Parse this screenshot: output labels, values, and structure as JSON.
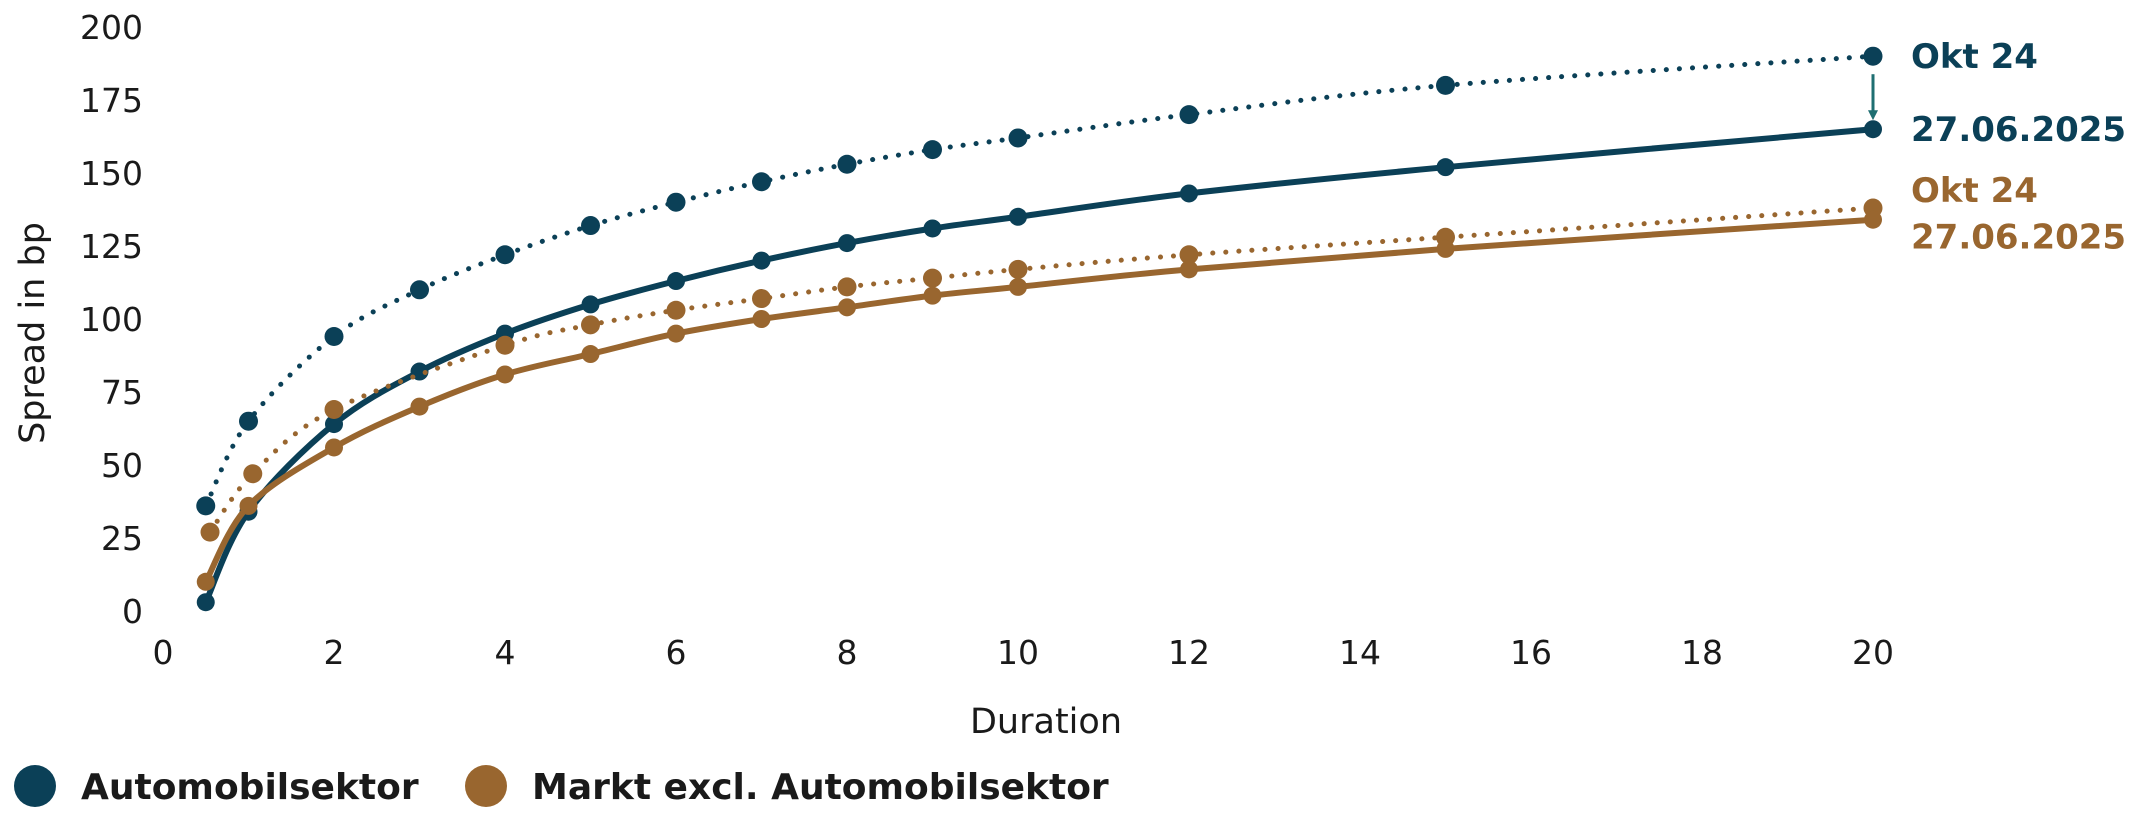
{
  "chart_data": {
    "type": "line",
    "xlabel": "Duration",
    "ylabel": "Spread in bp",
    "xlim": [
      0,
      20
    ],
    "ylim": [
      0,
      200
    ],
    "x_ticks": [
      "0",
      "2",
      "4",
      "6",
      "8",
      "10",
      "12",
      "14",
      "16",
      "18",
      "20"
    ],
    "y_ticks": [
      "0",
      "25",
      "50",
      "75",
      "100",
      "125",
      "150",
      "175",
      "200"
    ],
    "grid": false,
    "legend_position": "bottom-left",
    "colors": {
      "auto": "#0b4057",
      "market": "#99662f",
      "arrow": "#1f6f72"
    },
    "legend": [
      {
        "name": "Automobilsektor",
        "color": "#0b4057"
      },
      {
        "name": "Markt excl. Automobilsektor",
        "color": "#99662f"
      }
    ],
    "series": [
      {
        "group": "Automobilsektor",
        "end_label": "Okt 24",
        "style": "dotted",
        "color": "#0b4057",
        "x": [
          0.5,
          1,
          2,
          3,
          4,
          5,
          6,
          7,
          8,
          9,
          10,
          12,
          15,
          20
        ],
        "y": [
          36,
          65,
          94,
          110,
          122,
          132,
          140,
          147,
          153,
          158,
          162,
          170,
          180,
          190
        ]
      },
      {
        "group": "Automobilsektor",
        "end_label": "27.06.2025",
        "style": "solid",
        "color": "#0b4057",
        "x": [
          0.5,
          1,
          2,
          3,
          4,
          5,
          6,
          7,
          8,
          9,
          10,
          12,
          15,
          20
        ],
        "y": [
          3,
          34,
          64,
          82,
          95,
          105,
          113,
          120,
          126,
          131,
          135,
          143,
          152,
          165
        ]
      },
      {
        "group": "Markt excl. Automobilsektor",
        "end_label": "Okt 24",
        "style": "dotted",
        "color": "#99662f",
        "x": [
          0.55,
          1.05,
          2,
          4,
          5,
          6,
          7,
          8,
          9,
          10,
          12,
          15,
          20
        ],
        "y": [
          27,
          47,
          69,
          91,
          98,
          103,
          107,
          111,
          114,
          117,
          122,
          128,
          138
        ]
      },
      {
        "group": "Markt excl. Automobilsektor",
        "end_label": "27.06.2025",
        "style": "solid",
        "color": "#99662f",
        "x": [
          0.5,
          1,
          2,
          3,
          4,
          5,
          6,
          7,
          8,
          9,
          10,
          12,
          15,
          20
        ],
        "y": [
          10,
          36,
          56,
          70,
          81,
          88,
          95,
          100,
          104,
          108,
          111,
          117,
          124,
          134
        ]
      }
    ]
  }
}
